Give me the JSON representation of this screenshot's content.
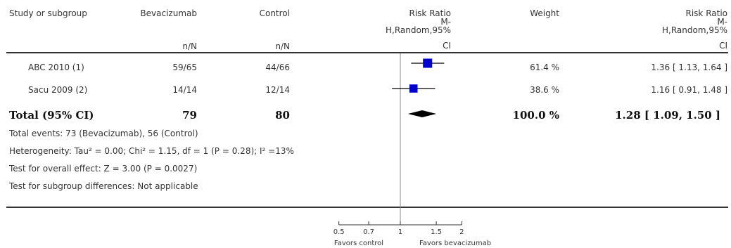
{
  "header": {
    "study": "Study or subgroup",
    "treatment": "Bevacizumab",
    "control": "Control",
    "treatment_sub": "n/N",
    "control_sub": "n/N",
    "rr_plot_lines": [
      "Risk Ratio",
      "M-",
      "H,Random,95%",
      "CI"
    ],
    "weight": "Weight",
    "rr_text_lines": [
      "Risk Ratio",
      "M-",
      "H,Random,95%",
      "CI"
    ]
  },
  "studies": [
    {
      "name": "ABC 2010 (1)",
      "treatment": "59/65",
      "control": "44/66",
      "weight": "61.4 %",
      "ci_text": "1.36 [ 1.13, 1.64 ]"
    },
    {
      "name": "Sacu 2009 (2)",
      "treatment": "14/14",
      "control": "12/14",
      "weight": "38.6 %",
      "ci_text": "1.16 [ 0.91, 1.48 ]"
    }
  ],
  "total": {
    "label": "Total (95% CI)",
    "treatment": "79",
    "control": "80",
    "weight": "100.0 %",
    "ci_text": "1.28 [ 1.09, 1.50 ]"
  },
  "footnotes": {
    "events": "Total events: 73 (Bevacizumab), 56 (Control)",
    "heterogeneity": "Heterogeneity: Tau² = 0.00; Chi² = 1.15, df = 1 (P = 0.28); I² =13%",
    "overall": "Test for overall effect: Z = 3.00 (P = 0.0027)",
    "subgroup": "Test for subgroup differences: Not applicable"
  },
  "axis": {
    "ticks": [
      0.5,
      0.7,
      1,
      1.5,
      2
    ],
    "tick_labels": [
      "0.5",
      "0.7",
      "1",
      "1.5",
      "2"
    ],
    "favors_left": "Favors control",
    "favors_right": "Favors bevacizumab"
  },
  "chart_data": {
    "type": "scatter",
    "scale": "log",
    "xlim": [
      0.5,
      2
    ],
    "null_line": 1,
    "series": [
      {
        "name": "ABC 2010 (1)",
        "estimate": 1.36,
        "lower": 1.13,
        "upper": 1.64,
        "weight": 61.4
      },
      {
        "name": "Sacu 2009 (2)",
        "estimate": 1.16,
        "lower": 0.91,
        "upper": 1.48,
        "weight": 38.6
      }
    ],
    "pooled": {
      "estimate": 1.28,
      "lower": 1.09,
      "upper": 1.5
    },
    "colors": {
      "marker": "#0000cc",
      "diamond": "#000000",
      "axis": "#333333"
    }
  }
}
